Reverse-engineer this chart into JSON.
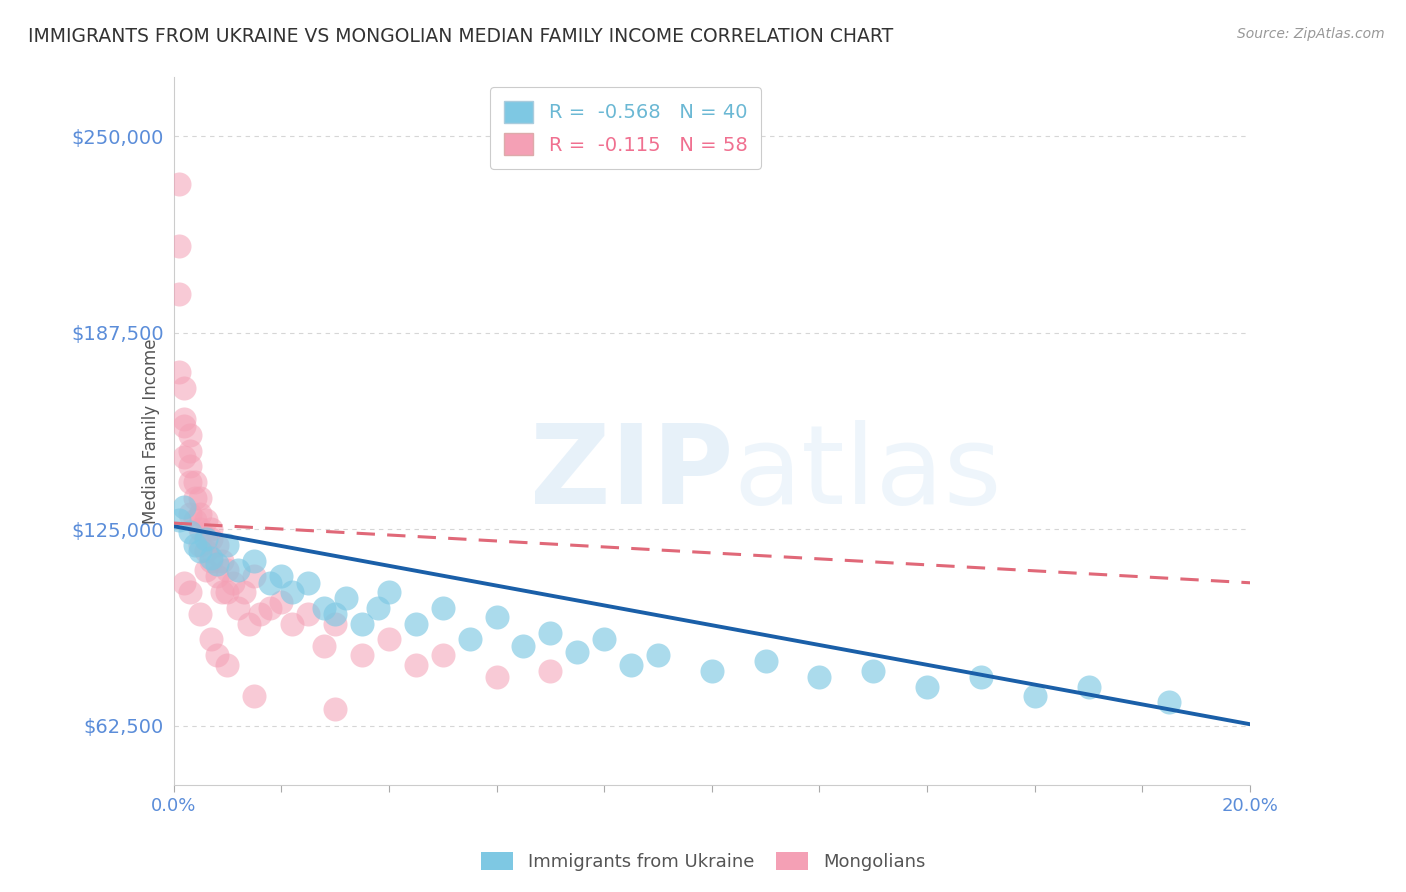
{
  "title": "IMMIGRANTS FROM UKRAINE VS MONGOLIAN MEDIAN FAMILY INCOME CORRELATION CHART",
  "source": "Source: ZipAtlas.com",
  "ylabel": "Median Family Income",
  "xlim": [
    0.0,
    0.2
  ],
  "ylim": [
    43750,
    268750
  ],
  "yticks": [
    62500,
    125000,
    187500,
    250000
  ],
  "ytick_labels": [
    "$62,500",
    "$125,000",
    "$187,500",
    "$250,000"
  ],
  "xticks": [
    0.0,
    0.02,
    0.04,
    0.06,
    0.08,
    0.1,
    0.12,
    0.14,
    0.16,
    0.18,
    0.2
  ],
  "xtick_labels": [
    "0.0%",
    "",
    "",
    "",
    "",
    "",
    "",
    "",
    "",
    "",
    "20.0%"
  ],
  "legend_entries": [
    {
      "label": "R =  -0.568   N = 40",
      "color": "#6bb8d4"
    },
    {
      "label": "R =  -0.115   N = 58",
      "color": "#f07090"
    }
  ],
  "ukraine_scatter_x": [
    0.001,
    0.002,
    0.003,
    0.004,
    0.005,
    0.006,
    0.007,
    0.008,
    0.01,
    0.012,
    0.015,
    0.018,
    0.02,
    0.022,
    0.025,
    0.028,
    0.03,
    0.032,
    0.035,
    0.038,
    0.04,
    0.045,
    0.05,
    0.055,
    0.06,
    0.065,
    0.07,
    0.075,
    0.08,
    0.085,
    0.09,
    0.1,
    0.11,
    0.12,
    0.13,
    0.14,
    0.15,
    0.16,
    0.17,
    0.185
  ],
  "ukraine_scatter_y": [
    128000,
    132000,
    124000,
    120000,
    118000,
    122000,
    116000,
    114000,
    120000,
    112000,
    115000,
    108000,
    110000,
    105000,
    108000,
    100000,
    98000,
    103000,
    95000,
    100000,
    105000,
    95000,
    100000,
    90000,
    97000,
    88000,
    92000,
    86000,
    90000,
    82000,
    85000,
    80000,
    83000,
    78000,
    80000,
    75000,
    78000,
    72000,
    75000,
    70000
  ],
  "mongolian_scatter_x": [
    0.001,
    0.001,
    0.001,
    0.001,
    0.002,
    0.002,
    0.002,
    0.002,
    0.003,
    0.003,
    0.003,
    0.003,
    0.003,
    0.004,
    0.004,
    0.004,
    0.005,
    0.005,
    0.005,
    0.005,
    0.006,
    0.006,
    0.006,
    0.007,
    0.007,
    0.007,
    0.008,
    0.008,
    0.009,
    0.009,
    0.01,
    0.01,
    0.011,
    0.012,
    0.013,
    0.014,
    0.015,
    0.016,
    0.018,
    0.02,
    0.022,
    0.025,
    0.028,
    0.03,
    0.035,
    0.04,
    0.045,
    0.05,
    0.06,
    0.07,
    0.002,
    0.003,
    0.005,
    0.007,
    0.008,
    0.01,
    0.015,
    0.03
  ],
  "mongolian_scatter_y": [
    235000,
    215000,
    200000,
    175000,
    170000,
    160000,
    148000,
    158000,
    155000,
    145000,
    140000,
    150000,
    130000,
    135000,
    128000,
    140000,
    130000,
    125000,
    135000,
    120000,
    118000,
    128000,
    112000,
    122000,
    115000,
    125000,
    110000,
    120000,
    115000,
    105000,
    112000,
    105000,
    108000,
    100000,
    105000,
    95000,
    110000,
    98000,
    100000,
    102000,
    95000,
    98000,
    88000,
    95000,
    85000,
    90000,
    82000,
    85000,
    78000,
    80000,
    108000,
    105000,
    98000,
    90000,
    85000,
    82000,
    72000,
    68000
  ],
  "ukraine_color": "#7ec8e3",
  "mongolian_color": "#f4a0b5",
  "ukraine_line_color": "#1a5fa8",
  "mongolian_line_color": "#e06878",
  "background_color": "#ffffff",
  "grid_color": "#cccccc",
  "title_color": "#333333",
  "tick_color": "#5b8dd9"
}
